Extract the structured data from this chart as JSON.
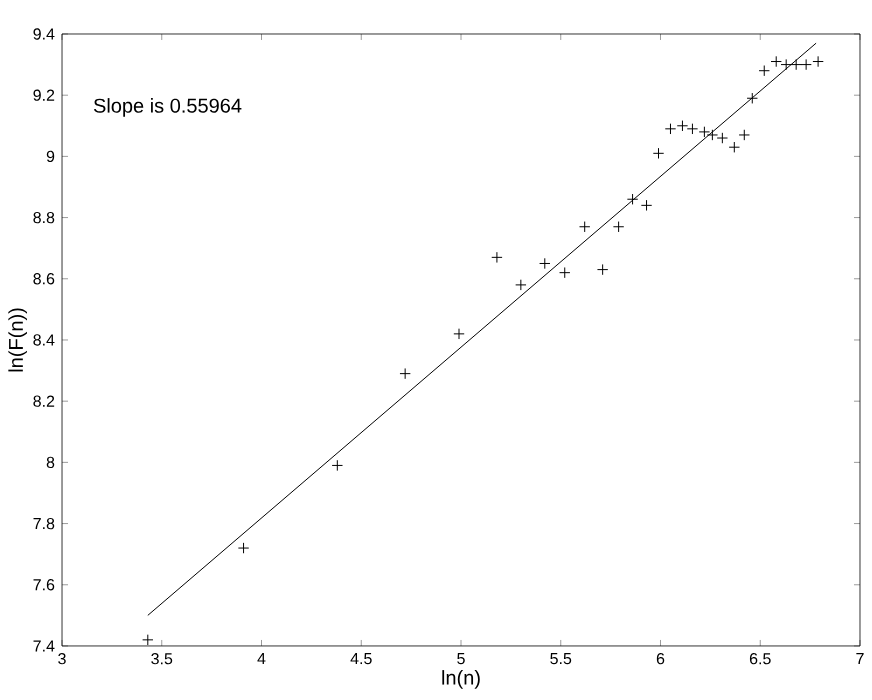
{
  "chart_data": {
    "type": "scatter",
    "xlabel": "ln(n)",
    "ylabel": "ln(F(n))",
    "annotations": [
      "Slope is 0.55964"
    ],
    "xlim": [
      3,
      7
    ],
    "ylim": [
      7.4,
      9.4
    ],
    "xticks": [
      3,
      3.5,
      4,
      4.5,
      5,
      5.5,
      6,
      6.5,
      7
    ],
    "yticks": [
      7.4,
      7.6,
      7.8,
      8,
      8.2,
      8.4,
      8.6,
      8.8,
      9,
      9.2,
      9.4
    ],
    "grid": false,
    "series": [
      {
        "marker": "cross",
        "color": "#000000",
        "x": [
          3.43,
          3.91,
          4.38,
          4.72,
          4.99,
          5.18,
          5.3,
          5.42,
          5.52,
          5.62,
          5.71,
          5.79,
          5.86,
          5.93,
          5.99,
          6.05,
          6.11,
          6.16,
          6.22,
          6.26,
          6.31,
          6.37,
          6.42,
          6.46,
          6.52,
          6.58,
          6.63,
          6.68,
          6.73,
          6.79
        ],
        "values": [
          7.42,
          7.72,
          7.99,
          8.29,
          8.42,
          8.67,
          8.58,
          8.65,
          8.62,
          8.77,
          8.63,
          8.77,
          8.86,
          8.84,
          9.01,
          9.09,
          9.1,
          9.09,
          9.08,
          9.07,
          9.06,
          9.03,
          9.07,
          9.19,
          9.28,
          9.31,
          9.3,
          9.3,
          9.3,
          9.31
        ]
      },
      {
        "type": "line",
        "marker": "none",
        "line_style": "solid",
        "color": "#000000",
        "x": [
          3.43,
          6.78
        ],
        "values": [
          7.5,
          9.37
        ]
      }
    ]
  }
}
